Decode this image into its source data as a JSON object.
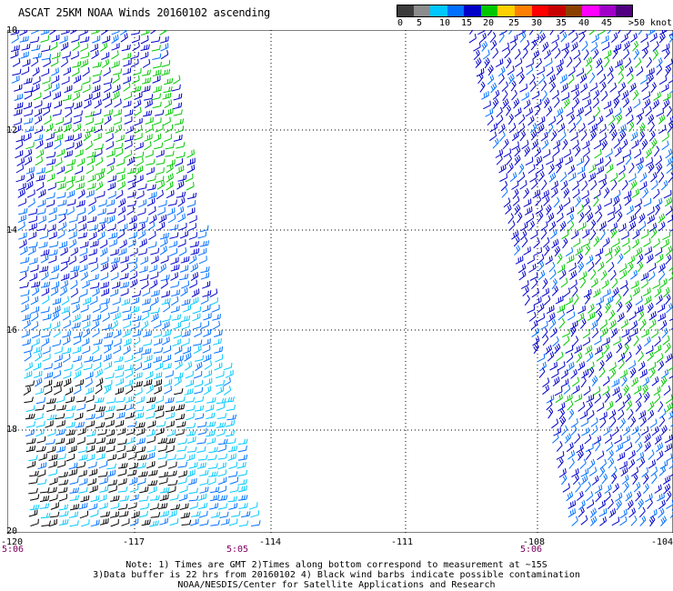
{
  "title": "ASCAT 25KM NOAA Winds 20160102 ascending",
  "colorbar": {
    "cells": [
      {
        "color": "#3c3c3c"
      },
      {
        "color": "#8c8c8c"
      },
      {
        "color": "#00c8ff"
      },
      {
        "color": "#0070ff"
      },
      {
        "color": "#0000c8"
      },
      {
        "color": "#00c800"
      },
      {
        "color": "#ffd000"
      },
      {
        "color": "#ff8000"
      },
      {
        "color": "#ff0000"
      },
      {
        "color": "#c80000"
      },
      {
        "color": "#8c4000"
      },
      {
        "color": "#ff00ff"
      },
      {
        "color": "#a000c8"
      },
      {
        "color": "#500080"
      }
    ],
    "ticks": [
      "0",
      "5",
      "10",
      "15",
      "20",
      "25",
      "30",
      "35",
      "40",
      "45",
      ">50 knots"
    ]
  },
  "map": {
    "lat_labels": [
      "10",
      "12",
      "14",
      "16",
      "18",
      "20"
    ],
    "lon_labels": [
      "-120",
      "-117",
      "-114",
      "-111",
      "-108",
      "-104"
    ],
    "lat_range": [
      10,
      20
    ],
    "lon_range": [
      -120,
      -105
    ],
    "grid": true,
    "swaths": [
      {
        "name": "left swath",
        "time": "5:06"
      },
      {
        "name": "left swath end",
        "time": "5:05"
      },
      {
        "name": "right swath",
        "time": "5:06"
      }
    ],
    "barb_colors": {
      "contaminated": "#000000",
      "lt5": "#8c8c8c",
      "5_10": "#00c8ff",
      "10_15": "#0070ff",
      "15_20": "#0000c8",
      "20_25": "#00c800"
    }
  },
  "notes": {
    "line1": "Note: 1) Times are GMT 2)Times along bottom correspond to measurement at ~15S",
    "line2": "3)Data buffer is 22 hrs from 20160102 4) Black wind barbs indicate possible contamination",
    "line3": "NOAA/NESDIS/Center for Satellite Applications and Research"
  }
}
